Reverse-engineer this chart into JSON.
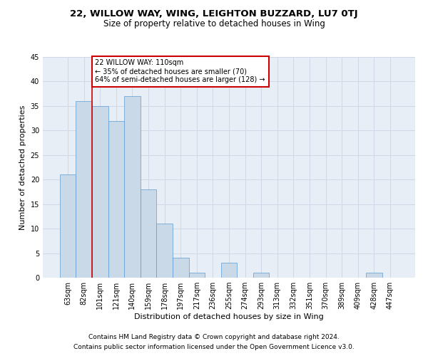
{
  "title1": "22, WILLOW WAY, WING, LEIGHTON BUZZARD, LU7 0TJ",
  "title2": "Size of property relative to detached houses in Wing",
  "xlabel": "Distribution of detached houses by size in Wing",
  "ylabel": "Number of detached properties",
  "categories": [
    "63sqm",
    "82sqm",
    "101sqm",
    "121sqm",
    "140sqm",
    "159sqm",
    "178sqm",
    "197sqm",
    "217sqm",
    "236sqm",
    "255sqm",
    "274sqm",
    "293sqm",
    "313sqm",
    "332sqm",
    "351sqm",
    "370sqm",
    "389sqm",
    "409sqm",
    "428sqm",
    "447sqm"
  ],
  "values": [
    21,
    36,
    35,
    32,
    37,
    18,
    11,
    4,
    1,
    0,
    3,
    0,
    1,
    0,
    0,
    0,
    0,
    0,
    0,
    1,
    0
  ],
  "bar_color": "#c9d9e8",
  "bar_edge_color": "#5b9bd5",
  "grid_color": "#d0d8e8",
  "background_color": "#e8eef5",
  "vline_x": 1.5,
  "vline_color": "#cc0000",
  "annotation_text": "22 WILLOW WAY: 110sqm\n← 35% of detached houses are smaller (70)\n64% of semi-detached houses are larger (128) →",
  "annotation_box_color": "#cc0000",
  "ylim": [
    0,
    45
  ],
  "yticks": [
    0,
    5,
    10,
    15,
    20,
    25,
    30,
    35,
    40,
    45
  ],
  "footer1": "Contains HM Land Registry data © Crown copyright and database right 2024.",
  "footer2": "Contains public sector information licensed under the Open Government Licence v3.0.",
  "title1_fontsize": 9.5,
  "title2_fontsize": 8.5,
  "axis_fontsize": 8,
  "tick_fontsize": 7,
  "footer_fontsize": 6.5
}
